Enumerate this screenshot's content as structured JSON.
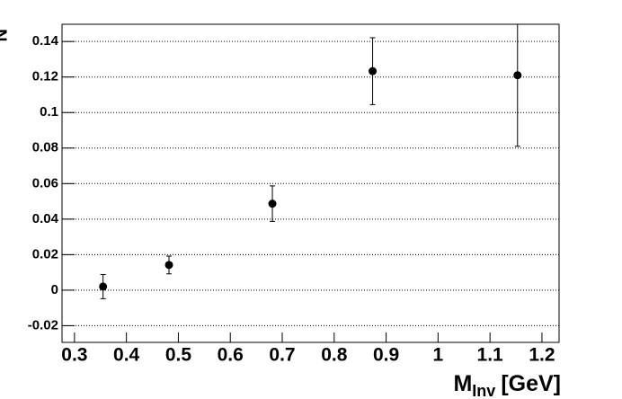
{
  "chart_data": {
    "type": "scatter",
    "ylabel": "N",
    "xlabel": {
      "main": "M",
      "sub": "Inv",
      "unit": "[GeV]"
    },
    "x": [
      0.355,
      0.482,
      0.681,
      0.874,
      1.153
    ],
    "series": [
      {
        "color": "#000000",
        "values": [
          0.002,
          0.0142,
          0.0487,
          0.1233,
          0.121
        ],
        "errors": [
          0.0068,
          0.005,
          0.01,
          0.0188,
          0.04
        ]
      }
    ],
    "xlim": [
      0.276,
      1.233
    ],
    "ylim": [
      -0.0294,
      0.1497
    ],
    "xticks": [
      0.3,
      0.4,
      0.5,
      0.6,
      0.7,
      0.8,
      0.9,
      1,
      1.1,
      1.2
    ],
    "yticks": [
      -0.02,
      0,
      0.02,
      0.04,
      0.06,
      0.08,
      0.1,
      0.12,
      0.14
    ],
    "grid": true
  }
}
